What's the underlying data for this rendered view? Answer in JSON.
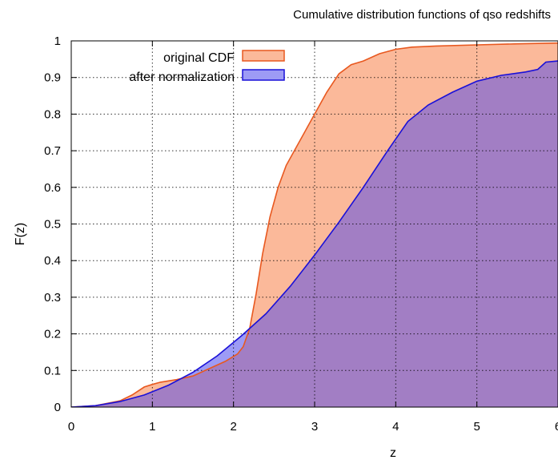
{
  "chart_data": {
    "type": "area",
    "title": "Cumulative distribution functions of qso redshifts",
    "xlabel": "z",
    "ylabel": "F(z)",
    "xlim": [
      0,
      6
    ],
    "ylim": [
      0,
      1
    ],
    "x_ticks": [
      "0",
      "1",
      "2",
      "3",
      "4",
      "5",
      "6"
    ],
    "y_ticks": [
      "0",
      "0.1",
      "0.2",
      "0.3",
      "0.4",
      "0.5",
      "0.6",
      "0.7",
      "0.8",
      "0.9",
      "1"
    ],
    "grid": true,
    "legend_position": "top-left",
    "series": [
      {
        "name": "original CDF",
        "line_color": "#e8581f",
        "fill_color": "#fbb99a",
        "points": [
          [
            0,
            0
          ],
          [
            0.3,
            0.004
          ],
          [
            0.6,
            0.017
          ],
          [
            0.75,
            0.033
          ],
          [
            0.9,
            0.055
          ],
          [
            1.0,
            0.062
          ],
          [
            1.1,
            0.068
          ],
          [
            1.3,
            0.075
          ],
          [
            1.5,
            0.085
          ],
          [
            1.7,
            0.105
          ],
          [
            1.9,
            0.125
          ],
          [
            2.05,
            0.145
          ],
          [
            2.12,
            0.165
          ],
          [
            2.2,
            0.215
          ],
          [
            2.28,
            0.31
          ],
          [
            2.36,
            0.42
          ],
          [
            2.45,
            0.52
          ],
          [
            2.55,
            0.6
          ],
          [
            2.65,
            0.66
          ],
          [
            2.8,
            0.72
          ],
          [
            3.0,
            0.8
          ],
          [
            3.15,
            0.86
          ],
          [
            3.3,
            0.91
          ],
          [
            3.45,
            0.935
          ],
          [
            3.6,
            0.945
          ],
          [
            3.8,
            0.965
          ],
          [
            4.0,
            0.977
          ],
          [
            4.2,
            0.983
          ],
          [
            4.5,
            0.986
          ],
          [
            5.0,
            0.989
          ],
          [
            5.5,
            0.992
          ],
          [
            6.0,
            0.994
          ]
        ]
      },
      {
        "name": "after normalization",
        "line_color": "#1a10d8",
        "fill_color": "#9d9bf5",
        "points": [
          [
            0,
            0
          ],
          [
            0.3,
            0.004
          ],
          [
            0.6,
            0.015
          ],
          [
            0.9,
            0.033
          ],
          [
            1.2,
            0.06
          ],
          [
            1.5,
            0.095
          ],
          [
            1.8,
            0.14
          ],
          [
            2.1,
            0.195
          ],
          [
            2.4,
            0.255
          ],
          [
            2.7,
            0.33
          ],
          [
            3.0,
            0.415
          ],
          [
            3.3,
            0.505
          ],
          [
            3.6,
            0.6
          ],
          [
            3.9,
            0.7
          ],
          [
            4.15,
            0.78
          ],
          [
            4.4,
            0.825
          ],
          [
            4.7,
            0.86
          ],
          [
            5.0,
            0.89
          ],
          [
            5.3,
            0.906
          ],
          [
            5.6,
            0.915
          ],
          [
            5.75,
            0.922
          ],
          [
            5.85,
            0.942
          ],
          [
            6.0,
            0.945
          ]
        ]
      }
    ],
    "overlap_color": "#a27ec4"
  }
}
